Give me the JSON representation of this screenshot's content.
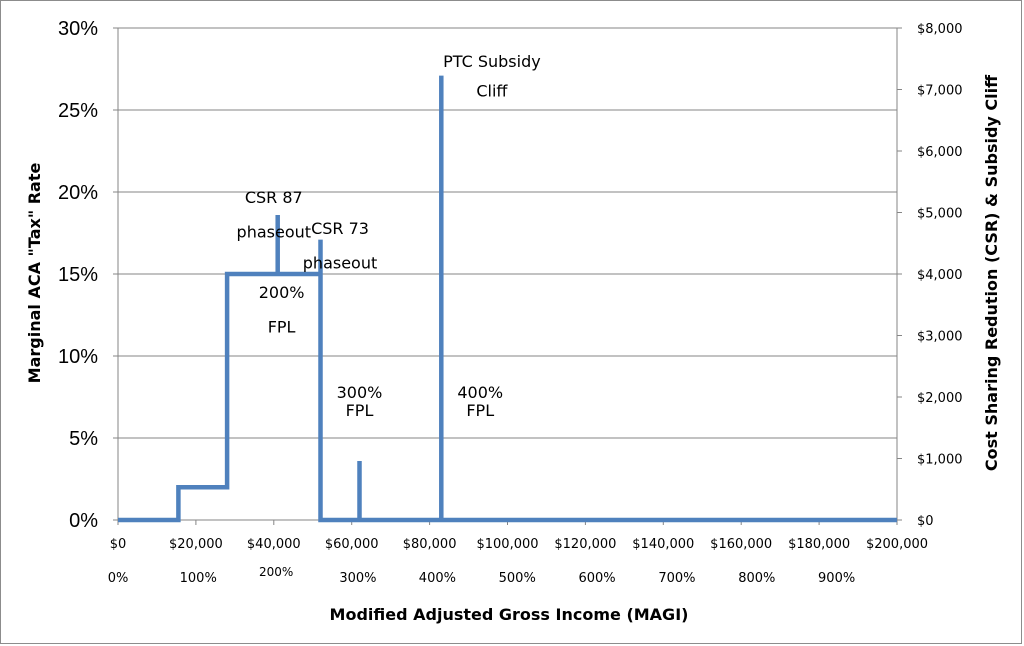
{
  "chart_data": {
    "type": "line",
    "title": "",
    "xlabel": "Modified Adjusted Gross Income (MAGI)",
    "ylabel_left": "Marginal ACA \"Tax\" Rate",
    "ylabel_right": "Cost Sharing Redution (CSR) & Subsidy Cliff",
    "xlim": [
      0,
      200000
    ],
    "ylim_left": [
      0,
      30
    ],
    "ylim_right": [
      0,
      8000
    ],
    "grid": "horizontal",
    "legend": "none",
    "line_color": "#4f81bd",
    "x_ticks_dollar": [
      {
        "value": 0,
        "label": "$0"
      },
      {
        "value": 20000,
        "label": "$20,000"
      },
      {
        "value": 40000,
        "label": "$40,000"
      },
      {
        "value": 60000,
        "label": "$60,000"
      },
      {
        "value": 80000,
        "label": "$80,000"
      },
      {
        "value": 100000,
        "label": "$100,000"
      },
      {
        "value": 120000,
        "label": "$120,000"
      },
      {
        "value": 140000,
        "label": "$140,000"
      },
      {
        "value": 160000,
        "label": "$160,000"
      },
      {
        "value": 180000,
        "label": "$180,000"
      },
      {
        "value": 200000,
        "label": "$200,000"
      }
    ],
    "x_ticks_fpl": [
      {
        "value": 0,
        "label": "0%"
      },
      {
        "value": 20600,
        "label": "100%"
      },
      {
        "value": 40600,
        "label": "200%"
      },
      {
        "value": 61600,
        "label": "300%"
      },
      {
        "value": 82000,
        "label": "400%"
      },
      {
        "value": 102500,
        "label": "500%"
      },
      {
        "value": 123000,
        "label": "600%"
      },
      {
        "value": 143500,
        "label": "700%"
      },
      {
        "value": 164000,
        "label": "800%"
      },
      {
        "value": 184500,
        "label": "900%"
      }
    ],
    "y_ticks_left": [
      {
        "value": 0,
        "label": "0%"
      },
      {
        "value": 5,
        "label": "5%"
      },
      {
        "value": 10,
        "label": "10%"
      },
      {
        "value": 15,
        "label": "15%"
      },
      {
        "value": 20,
        "label": "20%"
      },
      {
        "value": 25,
        "label": "25%"
      },
      {
        "value": 30,
        "label": "30%"
      }
    ],
    "y_ticks_right": [
      {
        "value": 0,
        "label": "$0"
      },
      {
        "value": 1000,
        "label": "$1,000"
      },
      {
        "value": 2000,
        "label": "$2,000"
      },
      {
        "value": 3000,
        "label": "$3,000"
      },
      {
        "value": 4000,
        "label": "$4,000"
      },
      {
        "value": 5000,
        "label": "$5,000"
      },
      {
        "value": 6000,
        "label": "$6,000"
      },
      {
        "value": 7000,
        "label": "$7,000"
      },
      {
        "value": 8000,
        "label": "$8,000"
      }
    ],
    "series": [
      {
        "x": [
          0,
          15500,
          15500,
          28000,
          28000,
          41000,
          41000,
          41000,
          52000,
          52000,
          52000,
          52000,
          62000,
          62000,
          62000,
          83000,
          83000,
          83000,
          200000
        ],
        "y": [
          0,
          0,
          2,
          2,
          15,
          15,
          18.6,
          15,
          15,
          17.1,
          15,
          0,
          0,
          3.6,
          0,
          0,
          27.1,
          0,
          0
        ]
      }
    ],
    "annotations": [
      {
        "text": "CSR 87",
        "x": 40000,
        "y": 19.7
      },
      {
        "text": "phaseout",
        "x": 40000,
        "y": 17.6
      },
      {
        "text": "CSR 73",
        "x": 57000,
        "y": 17.8
      },
      {
        "text": "phaseout",
        "x": 57000,
        "y": 15.7
      },
      {
        "text": "200%",
        "x": 42000,
        "y": 13.9
      },
      {
        "text": "FPL",
        "x": 42000,
        "y": 11.8
      },
      {
        "text": "300%",
        "x": 62000,
        "y": 7.8
      },
      {
        "text": "FPL",
        "x": 62000,
        "y": 6.7
      },
      {
        "text": "400%",
        "x": 93000,
        "y": 7.8
      },
      {
        "text": "FPL",
        "x": 93000,
        "y": 6.7
      },
      {
        "text": "PTC Subsidy",
        "x": 96000,
        "y": 28.0
      },
      {
        "text": "Cliff",
        "x": 96000,
        "y": 26.2
      }
    ]
  }
}
